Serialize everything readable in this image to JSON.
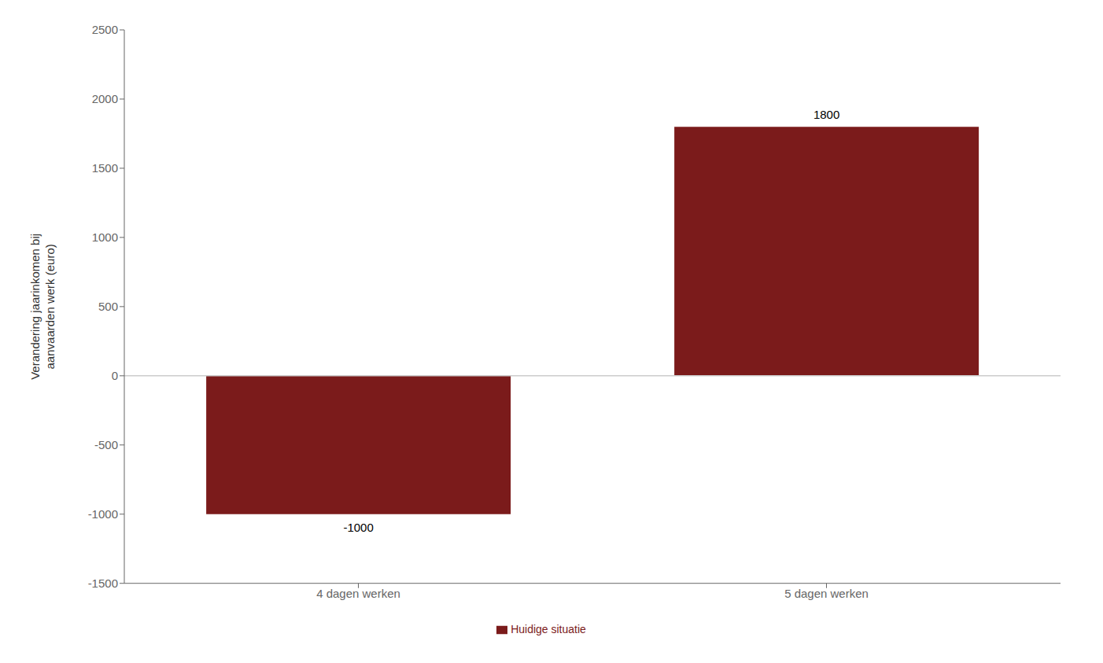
{
  "chart_data": {
    "type": "bar",
    "categories": [
      "4 dagen werken",
      "5 dagen werken"
    ],
    "series": [
      {
        "name": "Huidige situatie",
        "color": "#7B1B1B",
        "values": [
          -1000,
          1800
        ]
      }
    ],
    "ylabel": "Verandering jaarinkomen bij\naanvaarden werk (euro)",
    "ylim": [
      -1500,
      2500
    ],
    "yticks": [
      -1500,
      -1000,
      -500,
      0,
      500,
      1000,
      1500,
      2000,
      2500
    ],
    "grid": false,
    "legend": "bottom",
    "data_labels": true
  }
}
